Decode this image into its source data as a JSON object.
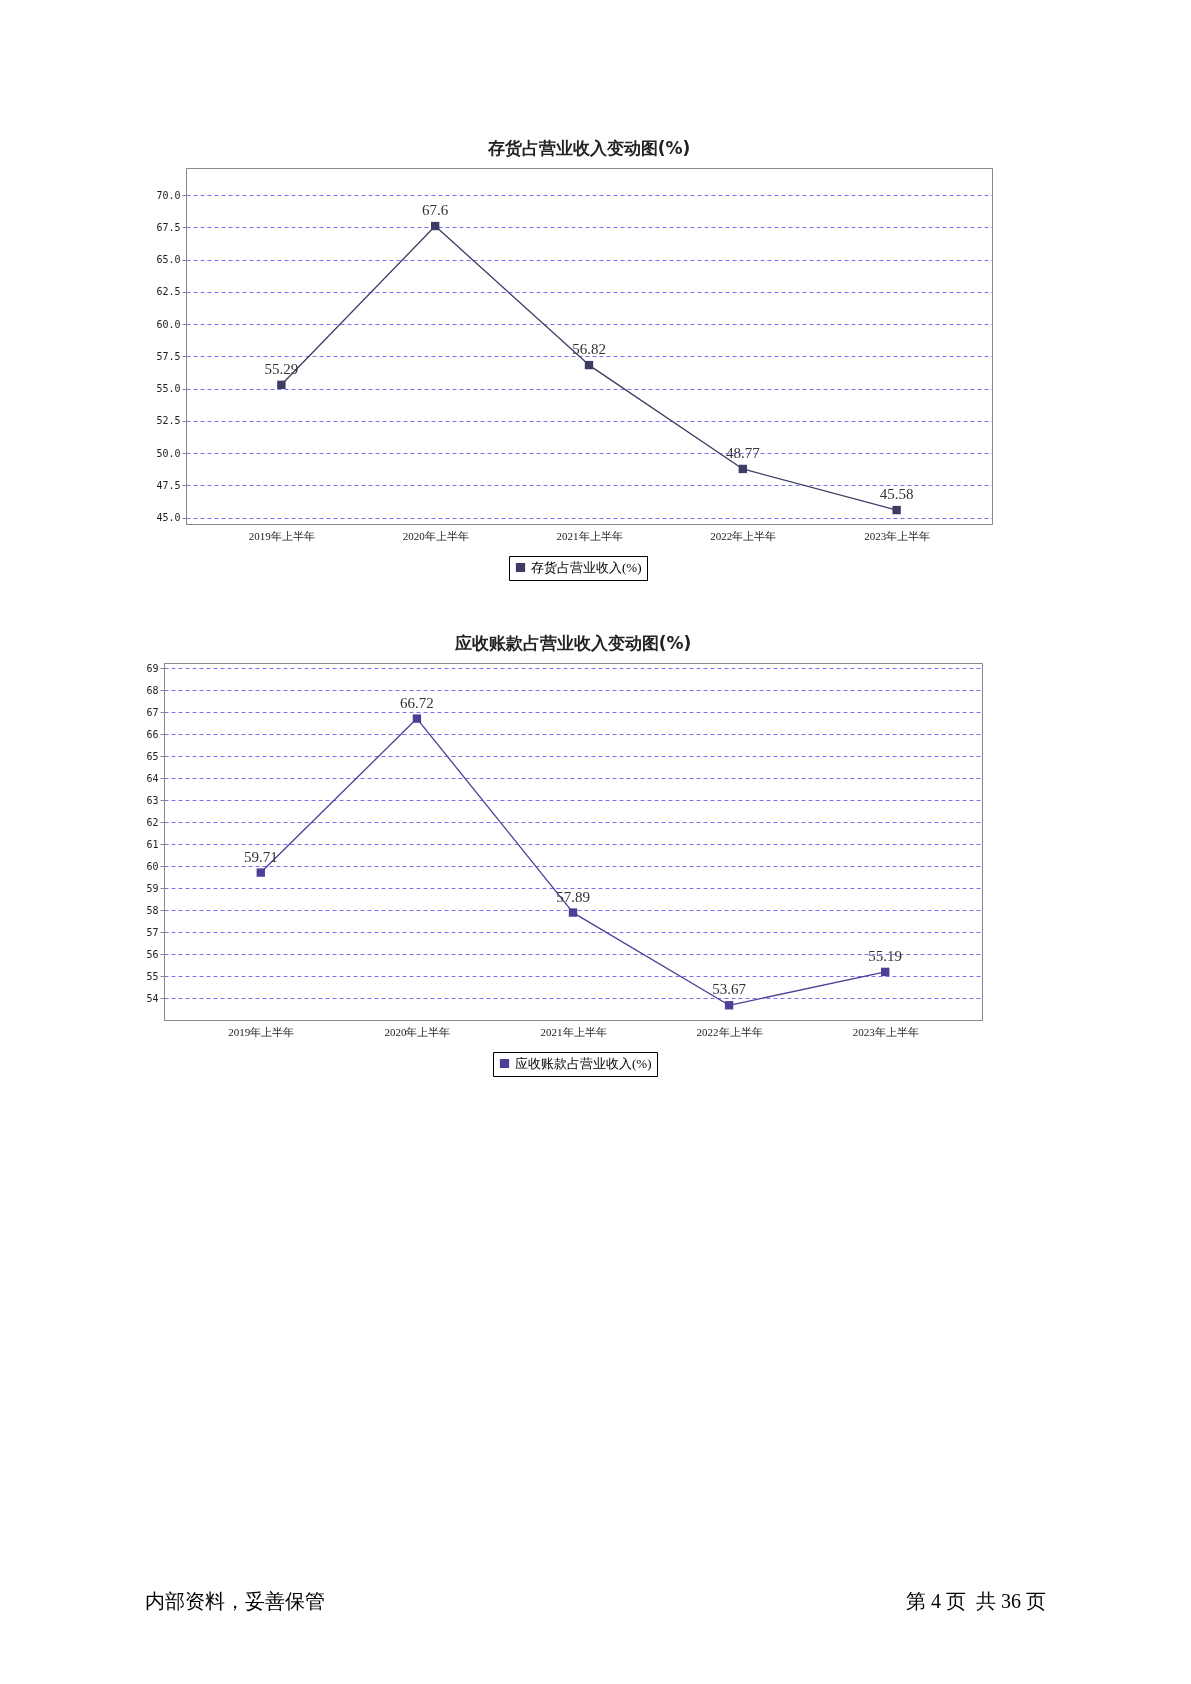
{
  "chart_data": [
    {
      "type": "line",
      "title": "存货占营业收入变动图(%)",
      "categories": [
        "2019年上半年",
        "2020年上半年",
        "2021年上半年",
        "2022年上半年",
        "2023年上半年"
      ],
      "series": [
        {
          "name": "存货占营业收入(%)",
          "color": "#3c3c64",
          "values": [
            55.29,
            67.6,
            56.82,
            48.77,
            45.58
          ]
        }
      ],
      "ylim": [
        44.5,
        72.1
      ],
      "yticks": [
        {
          "value": 45,
          "label": "45.0"
        },
        47.5,
        {
          "value": 50,
          "label": "50.0"
        },
        52.5,
        {
          "value": 55,
          "label": "55.0"
        },
        57.5,
        {
          "value": 60,
          "label": "60.0"
        },
        62.5,
        {
          "value": 65,
          "label": "65.0"
        },
        67.5,
        {
          "value": 70,
          "label": "70.0"
        }
      ],
      "grid": "y",
      "legend": "bottom",
      "marker": "square",
      "data_labels": true
    },
    {
      "type": "line",
      "title": "应收账款占营业收入变动图(%)",
      "categories": [
        "2019年上半年",
        "2020年上半年",
        "2021年上半年",
        "2022年上半年",
        "2023年上半年"
      ],
      "series": [
        {
          "name": "应收账款占营业收入(%)",
          "color": "#4b3f96",
          "values": [
            59.71,
            66.72,
            57.89,
            53.67,
            55.19
          ]
        }
      ],
      "ylim": [
        53,
        69.25
      ],
      "yticks": [
        54,
        55,
        56,
        57,
        58,
        59,
        60,
        61,
        62,
        63,
        64,
        65,
        66,
        67,
        68,
        69
      ],
      "grid": "y",
      "legend": "bottom",
      "marker": "square",
      "data_labels": true,
      "annotations": [
        "内部资料，妥善保管",
        "第 4 页  共 36 页"
      ]
    }
  ]
}
